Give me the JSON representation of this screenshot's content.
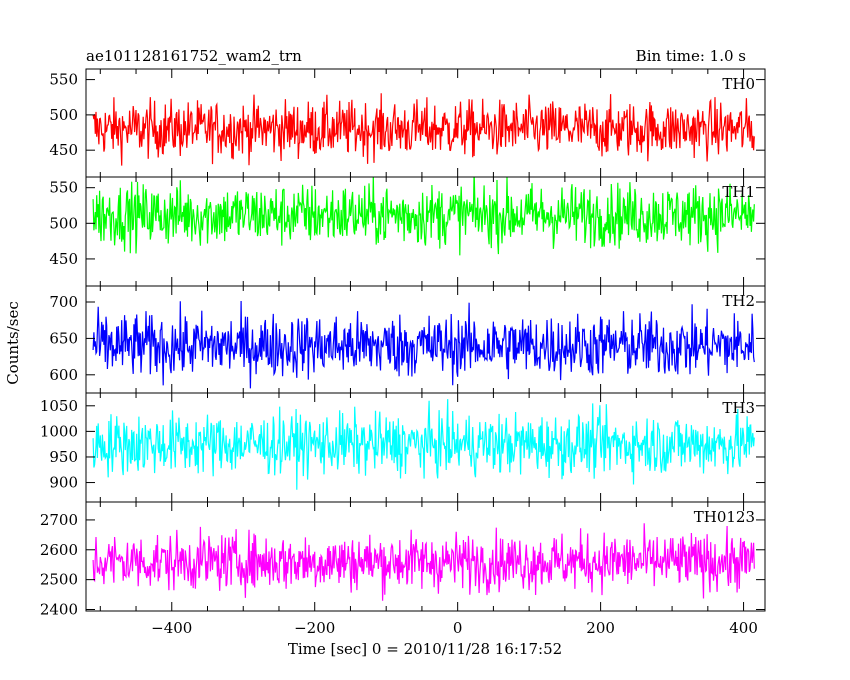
{
  "chart_data": {
    "type": "line",
    "title_left": "ae101128161752_wam2_trn",
    "title_right": "Bin time: 1.0 s",
    "xlabel": "Time [sec] 0 = 2010/11/28 16:17:52",
    "ylabel": "Counts/sec",
    "xlim": [
      -520,
      430
    ],
    "x_range": [
      -510,
      415
    ],
    "xticks": [
      -400,
      -200,
      0,
      200,
      400
    ],
    "grid": false,
    "panels": [
      {
        "name": "TH0",
        "color": "#ff0000",
        "ylim": [
          412,
          565
        ],
        "yticks": [
          450,
          500,
          550
        ],
        "mean": 480,
        "noise": 20
      },
      {
        "name": "TH1",
        "color": "#00ff00",
        "ylim": [
          412,
          565
        ],
        "yticks": [
          450,
          500,
          550
        ],
        "mean": 512,
        "noise": 22
      },
      {
        "name": "TH2",
        "color": "#0000ff",
        "ylim": [
          575,
          722
        ],
        "yticks": [
          600,
          650,
          700
        ],
        "mean": 640,
        "noise": 22
      },
      {
        "name": "TH3",
        "color": "#00ffff",
        "ylim": [
          862,
          1075
        ],
        "yticks": [
          900,
          950,
          1000,
          1050
        ],
        "mean": 975,
        "noise": 30
      },
      {
        "name": "TH0123",
        "color": "#ff00ff",
        "ylim": [
          2395,
          2760
        ],
        "yticks": [
          2400,
          2500,
          2600,
          2700
        ],
        "mean": 2560,
        "noise": 48
      }
    ]
  }
}
